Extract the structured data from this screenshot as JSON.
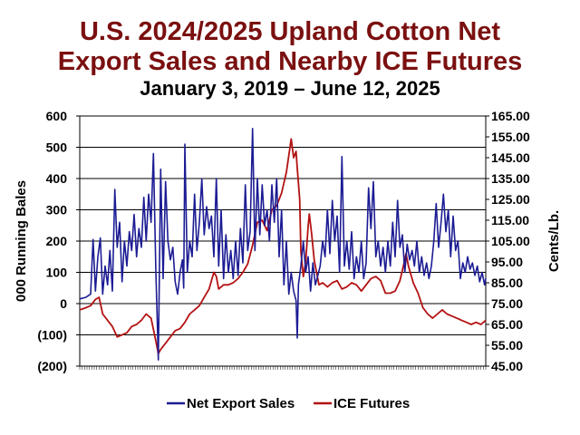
{
  "title_line1": "U.S. 2024/2025 Upland Cotton Net",
  "title_line2": "Export Sales and Nearby ICE Futures",
  "subtitle": "January 3, 2019 – June 12, 2025",
  "colors": {
    "title": "#7b1010",
    "export_sales": "#1c1c94",
    "ice_futures": "#b31212"
  },
  "chart_data": {
    "type": "line",
    "ylabel": "000 Running Bales",
    "y2label": "Cents/Lb.",
    "ylim": [
      -200,
      600
    ],
    "y2lim": [
      45,
      165
    ],
    "yticks": [
      "(200)",
      "(100)",
      "0",
      "100",
      "200",
      "300",
      "400",
      "500",
      "600"
    ],
    "y2ticks": [
      "45.00",
      "55.00",
      "65.00",
      "75.00",
      "85.00",
      "95.00",
      "105.00",
      "115.00",
      "125.00",
      "135.00",
      "145.00",
      "155.00",
      "165.00"
    ],
    "xlim": [
      "2019-01-03",
      "2025-06-12"
    ],
    "grid": true,
    "legend": "bottom",
    "series": [
      {
        "name": "Net Export Sales",
        "axis": "left",
        "points": [
          [
            "2019-01-03",
            15
          ],
          [
            "2019-02-07",
            20
          ],
          [
            "2019-03-07",
            30
          ],
          [
            "2019-03-21",
            205
          ],
          [
            "2019-04-04",
            40
          ],
          [
            "2019-04-18",
            150
          ],
          [
            "2019-05-02",
            210
          ],
          [
            "2019-05-16",
            30
          ],
          [
            "2019-05-30",
            120
          ],
          [
            "2019-06-13",
            60
          ],
          [
            "2019-06-27",
            170
          ],
          [
            "2019-07-11",
            40
          ],
          [
            "2019-07-25",
            365
          ],
          [
            "2019-08-08",
            180
          ],
          [
            "2019-08-22",
            260
          ],
          [
            "2019-09-05",
            70
          ],
          [
            "2019-09-19",
            200
          ],
          [
            "2019-10-03",
            120
          ],
          [
            "2019-10-17",
            230
          ],
          [
            "2019-10-31",
            170
          ],
          [
            "2019-11-14",
            285
          ],
          [
            "2019-11-28",
            150
          ],
          [
            "2019-12-12",
            240
          ],
          [
            "2019-12-26",
            180
          ],
          [
            "2020-01-09",
            340
          ],
          [
            "2020-01-23",
            200
          ],
          [
            "2020-02-06",
            350
          ],
          [
            "2020-02-20",
            260
          ],
          [
            "2020-03-05",
            480
          ],
          [
            "2020-03-19",
            100
          ],
          [
            "2020-03-26",
            -30
          ],
          [
            "2020-04-02",
            -180
          ],
          [
            "2020-04-16",
            430
          ],
          [
            "2020-04-30",
            80
          ],
          [
            "2020-05-14",
            390
          ],
          [
            "2020-05-28",
            200
          ],
          [
            "2020-06-11",
            140
          ],
          [
            "2020-06-25",
            180
          ],
          [
            "2020-07-09",
            70
          ],
          [
            "2020-07-23",
            30
          ],
          [
            "2020-08-06",
            100
          ],
          [
            "2020-08-20",
            140
          ],
          [
            "2020-08-27",
            50
          ],
          [
            "2020-09-03",
            510
          ],
          [
            "2020-09-17",
            100
          ],
          [
            "2020-10-01",
            200
          ],
          [
            "2020-10-15",
            150
          ],
          [
            "2020-10-29",
            350
          ],
          [
            "2020-11-12",
            170
          ],
          [
            "2020-11-26",
            260
          ],
          [
            "2020-12-10",
            400
          ],
          [
            "2020-12-24",
            220
          ],
          [
            "2021-01-07",
            310
          ],
          [
            "2021-01-21",
            240
          ],
          [
            "2021-02-04",
            280
          ],
          [
            "2021-02-18",
            150
          ],
          [
            "2021-03-04",
            400
          ],
          [
            "2021-03-18",
            120
          ],
          [
            "2021-04-01",
            300
          ],
          [
            "2021-04-15",
            80
          ],
          [
            "2021-04-29",
            220
          ],
          [
            "2021-05-13",
            100
          ],
          [
            "2021-05-27",
            170
          ],
          [
            "2021-06-10",
            80
          ],
          [
            "2021-06-24",
            200
          ],
          [
            "2021-07-08",
            90
          ],
          [
            "2021-07-22",
            240
          ],
          [
            "2021-08-05",
            130
          ],
          [
            "2021-08-19",
            380
          ],
          [
            "2021-09-02",
            170
          ],
          [
            "2021-09-16",
            230
          ],
          [
            "2021-09-30",
            560
          ],
          [
            "2021-10-14",
            170
          ],
          [
            "2021-10-28",
            400
          ],
          [
            "2021-11-11",
            220
          ],
          [
            "2021-11-25",
            380
          ],
          [
            "2021-12-09",
            250
          ],
          [
            "2021-12-23",
            300
          ],
          [
            "2022-01-06",
            200
          ],
          [
            "2022-01-20",
            380
          ],
          [
            "2022-02-03",
            260
          ],
          [
            "2022-02-17",
            400
          ],
          [
            "2022-03-03",
            150
          ],
          [
            "2022-03-17",
            300
          ],
          [
            "2022-03-31",
            60
          ],
          [
            "2022-04-14",
            200
          ],
          [
            "2022-04-28",
            30
          ],
          [
            "2022-05-12",
            100
          ],
          [
            "2022-05-26",
            40
          ],
          [
            "2022-06-09",
            10
          ],
          [
            "2022-06-16",
            -110
          ],
          [
            "2022-06-23",
            60
          ],
          [
            "2022-07-07",
            120
          ],
          [
            "2022-07-21",
            200
          ],
          [
            "2022-08-04",
            100
          ],
          [
            "2022-08-18",
            150
          ],
          [
            "2022-09-01",
            40
          ],
          [
            "2022-09-15",
            130
          ],
          [
            "2022-09-29",
            60
          ],
          [
            "2022-10-13",
            90
          ],
          [
            "2022-10-27",
            120
          ],
          [
            "2022-11-10",
            200
          ],
          [
            "2022-11-24",
            150
          ],
          [
            "2022-12-08",
            300
          ],
          [
            "2022-12-22",
            160
          ],
          [
            "2023-01-05",
            330
          ],
          [
            "2023-01-19",
            200
          ],
          [
            "2023-02-02",
            280
          ],
          [
            "2023-02-16",
            100
          ],
          [
            "2023-03-02",
            470
          ],
          [
            "2023-03-16",
            120
          ],
          [
            "2023-03-30",
            200
          ],
          [
            "2023-04-13",
            110
          ],
          [
            "2023-04-27",
            230
          ],
          [
            "2023-05-11",
            80
          ],
          [
            "2023-05-25",
            150
          ],
          [
            "2023-06-08",
            100
          ],
          [
            "2023-06-22",
            200
          ],
          [
            "2023-07-06",
            80
          ],
          [
            "2023-07-20",
            130
          ],
          [
            "2023-08-03",
            370
          ],
          [
            "2023-08-17",
            240
          ],
          [
            "2023-08-31",
            390
          ],
          [
            "2023-09-14",
            150
          ],
          [
            "2023-09-28",
            200
          ],
          [
            "2023-10-12",
            120
          ],
          [
            "2023-10-26",
            180
          ],
          [
            "2023-11-09",
            100
          ],
          [
            "2023-11-23",
            200
          ],
          [
            "2023-12-07",
            120
          ],
          [
            "2023-12-21",
            260
          ],
          [
            "2024-01-04",
            150
          ],
          [
            "2024-01-18",
            330
          ],
          [
            "2024-02-01",
            180
          ],
          [
            "2024-02-15",
            220
          ],
          [
            "2024-02-29",
            100
          ],
          [
            "2024-03-14",
            190
          ],
          [
            "2024-03-28",
            140
          ],
          [
            "2024-04-11",
            170
          ],
          [
            "2024-04-25",
            120
          ],
          [
            "2024-05-09",
            200
          ],
          [
            "2024-05-23",
            100
          ],
          [
            "2024-06-06",
            150
          ],
          [
            "2024-06-20",
            90
          ],
          [
            "2024-07-04",
            130
          ],
          [
            "2024-07-18",
            80
          ],
          [
            "2024-08-01",
            120
          ],
          [
            "2024-08-15",
            200
          ],
          [
            "2024-08-29",
            320
          ],
          [
            "2024-09-12",
            180
          ],
          [
            "2024-09-26",
            260
          ],
          [
            "2024-10-10",
            350
          ],
          [
            "2024-10-24",
            230
          ],
          [
            "2024-11-07",
            300
          ],
          [
            "2024-11-21",
            150
          ],
          [
            "2024-12-05",
            280
          ],
          [
            "2024-12-19",
            170
          ],
          [
            "2025-01-02",
            200
          ],
          [
            "2025-01-16",
            80
          ],
          [
            "2025-01-30",
            130
          ],
          [
            "2025-02-13",
            100
          ],
          [
            "2025-02-27",
            150
          ],
          [
            "2025-03-13",
            110
          ],
          [
            "2025-03-27",
            130
          ],
          [
            "2025-04-10",
            90
          ],
          [
            "2025-04-24",
            120
          ],
          [
            "2025-05-08",
            70
          ],
          [
            "2025-05-22",
            100
          ],
          [
            "2025-06-05",
            60
          ],
          [
            "2025-06-12",
            80
          ]
        ]
      },
      {
        "name": "ICE Futures",
        "axis": "right",
        "points": [
          [
            "2019-01-03",
            72
          ],
          [
            "2019-02-07",
            73
          ],
          [
            "2019-03-07",
            74
          ],
          [
            "2019-04-04",
            77
          ],
          [
            "2019-04-25",
            78
          ],
          [
            "2019-05-16",
            70
          ],
          [
            "2019-06-13",
            67
          ],
          [
            "2019-07-11",
            64
          ],
          [
            "2019-08-08",
            59
          ],
          [
            "2019-09-05",
            60
          ],
          [
            "2019-10-03",
            61
          ],
          [
            "2019-10-31",
            64
          ],
          [
            "2019-11-28",
            65
          ],
          [
            "2019-12-26",
            67
          ],
          [
            "2020-01-23",
            70
          ],
          [
            "2020-02-20",
            68
          ],
          [
            "2020-03-19",
            57
          ],
          [
            "2020-04-02",
            51
          ],
          [
            "2020-04-16",
            53
          ],
          [
            "2020-05-14",
            56
          ],
          [
            "2020-06-11",
            59
          ],
          [
            "2020-07-09",
            62
          ],
          [
            "2020-08-06",
            63
          ],
          [
            "2020-09-03",
            66
          ],
          [
            "2020-10-01",
            70
          ],
          [
            "2020-10-29",
            72
          ],
          [
            "2020-11-26",
            74
          ],
          [
            "2020-12-24",
            78
          ],
          [
            "2021-01-21",
            82
          ],
          [
            "2021-02-18",
            90
          ],
          [
            "2021-03-04",
            88
          ],
          [
            "2021-03-18",
            82
          ],
          [
            "2021-04-15",
            84
          ],
          [
            "2021-05-13",
            84
          ],
          [
            "2021-06-10",
            85
          ],
          [
            "2021-07-08",
            87
          ],
          [
            "2021-08-05",
            90
          ],
          [
            "2021-09-02",
            94
          ],
          [
            "2021-09-30",
            103
          ],
          [
            "2021-10-28",
            114
          ],
          [
            "2021-11-25",
            115
          ],
          [
            "2021-12-23",
            110
          ],
          [
            "2022-01-20",
            120
          ],
          [
            "2022-02-17",
            122
          ],
          [
            "2022-03-17",
            128
          ],
          [
            "2022-04-14",
            138
          ],
          [
            "2022-05-05",
            150
          ],
          [
            "2022-05-12",
            154
          ],
          [
            "2022-05-26",
            145
          ],
          [
            "2022-06-09",
            148
          ],
          [
            "2022-06-16",
            140
          ],
          [
            "2022-06-30",
            125
          ],
          [
            "2022-07-07",
            100
          ],
          [
            "2022-07-21",
            88
          ],
          [
            "2022-08-04",
            95
          ],
          [
            "2022-08-18",
            112
          ],
          [
            "2022-08-25",
            118
          ],
          [
            "2022-09-08",
            108
          ],
          [
            "2022-09-22",
            96
          ],
          [
            "2022-10-06",
            90
          ],
          [
            "2022-10-20",
            84
          ],
          [
            "2022-11-10",
            85
          ],
          [
            "2022-12-08",
            83
          ],
          [
            "2023-01-05",
            85
          ],
          [
            "2023-02-02",
            86
          ],
          [
            "2023-03-02",
            82
          ],
          [
            "2023-03-30",
            83
          ],
          [
            "2023-04-27",
            85
          ],
          [
            "2023-05-25",
            84
          ],
          [
            "2023-06-22",
            81
          ],
          [
            "2023-07-20",
            84
          ],
          [
            "2023-08-17",
            87
          ],
          [
            "2023-09-14",
            88
          ],
          [
            "2023-10-12",
            86
          ],
          [
            "2023-11-09",
            80
          ],
          [
            "2023-12-07",
            80
          ],
          [
            "2024-01-04",
            81
          ],
          [
            "2024-02-01",
            86
          ],
          [
            "2024-02-29",
            96
          ],
          [
            "2024-03-07",
            99
          ],
          [
            "2024-03-21",
            93
          ],
          [
            "2024-04-18",
            85
          ],
          [
            "2024-05-16",
            80
          ],
          [
            "2024-06-13",
            73
          ],
          [
            "2024-07-11",
            70
          ],
          [
            "2024-08-08",
            68
          ],
          [
            "2024-09-05",
            70
          ],
          [
            "2024-10-03",
            72
          ],
          [
            "2024-10-31",
            70
          ],
          [
            "2024-11-28",
            69
          ],
          [
            "2024-12-26",
            68
          ],
          [
            "2025-01-23",
            67
          ],
          [
            "2025-02-20",
            66
          ],
          [
            "2025-03-20",
            65
          ],
          [
            "2025-04-17",
            66
          ],
          [
            "2025-05-15",
            65
          ],
          [
            "2025-06-12",
            67
          ]
        ]
      }
    ]
  }
}
